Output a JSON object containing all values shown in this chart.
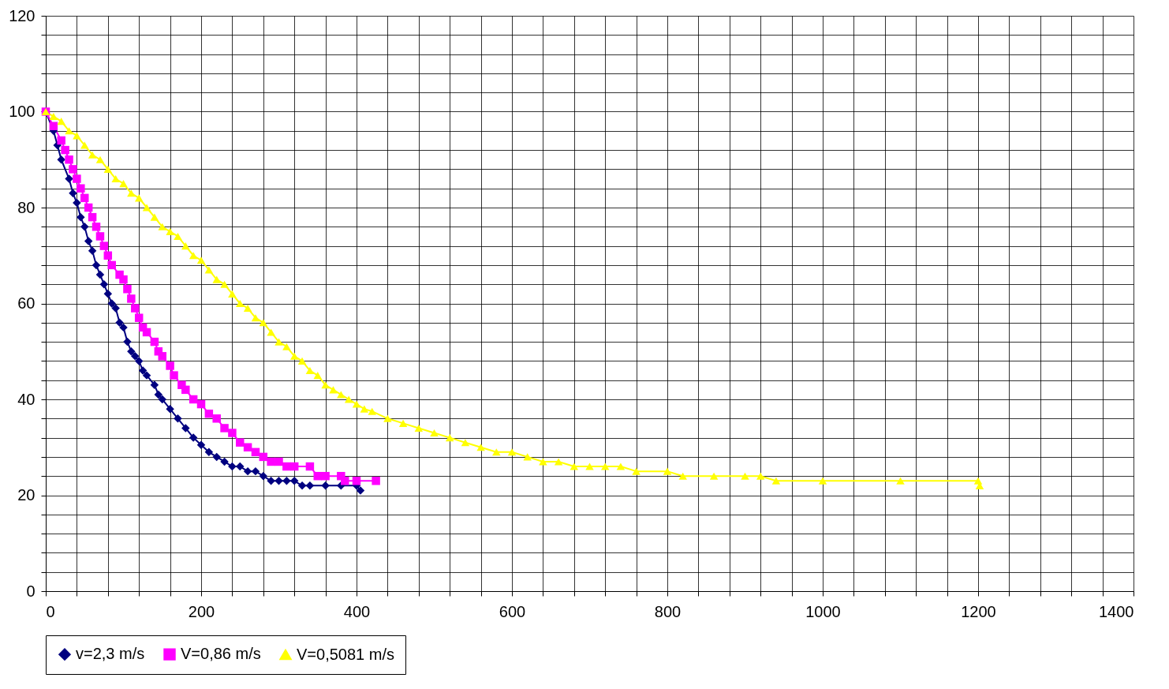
{
  "chart_data": {
    "type": "line",
    "xlim": [
      0,
      1400
    ],
    "ylim": [
      0,
      120
    ],
    "xticks": [
      0,
      {
        "value": 40,
        "label": null
      },
      {
        "value": 80,
        "label": null
      },
      {
        "value": 120,
        "label": null
      },
      {
        "value": 160,
        "label": null
      },
      200,
      {
        "value": 240,
        "label": null
      },
      {
        "value": 280,
        "label": null
      },
      {
        "value": 320,
        "label": null
      },
      {
        "value": 360,
        "label": null
      },
      400,
      {
        "value": 440,
        "label": null
      },
      {
        "value": 480,
        "label": null
      },
      {
        "value": 520,
        "label": null
      },
      {
        "value": 560,
        "label": null
      },
      600,
      {
        "value": 640,
        "label": null
      },
      {
        "value": 680,
        "label": null
      },
      {
        "value": 720,
        "label": null
      },
      {
        "value": 760,
        "label": null
      },
      800,
      {
        "value": 840,
        "label": null
      },
      {
        "value": 880,
        "label": null
      },
      {
        "value": 920,
        "label": null
      },
      {
        "value": 960,
        "label": null
      },
      1000,
      {
        "value": 1040,
        "label": null
      },
      {
        "value": 1080,
        "label": null
      },
      {
        "value": 1120,
        "label": null
      },
      {
        "value": 1160,
        "label": null
      },
      1200,
      {
        "value": 1240,
        "label": null
      },
      {
        "value": 1280,
        "label": null
      },
      {
        "value": 1320,
        "label": null
      },
      {
        "value": 1360,
        "label": null
      },
      1400
    ],
    "yticks": [
      0,
      {
        "value": 4,
        "label": null
      },
      {
        "value": 8,
        "label": null
      },
      {
        "value": 12,
        "label": null
      },
      {
        "value": 16,
        "label": null
      },
      20,
      {
        "value": 24,
        "label": null
      },
      {
        "value": 28,
        "label": null
      },
      {
        "value": 32,
        "label": null
      },
      {
        "value": 36,
        "label": null
      },
      40,
      {
        "value": 44,
        "label": null
      },
      {
        "value": 48,
        "label": null
      },
      {
        "value": 52,
        "label": null
      },
      {
        "value": 56,
        "label": null
      },
      60,
      {
        "value": 64,
        "label": null
      },
      {
        "value": 68,
        "label": null
      },
      {
        "value": 72,
        "label": null
      },
      {
        "value": 76,
        "label": null
      },
      80,
      {
        "value": 84,
        "label": null
      },
      {
        "value": 88,
        "label": null
      },
      {
        "value": 92,
        "label": null
      },
      {
        "value": 96,
        "label": null
      },
      100,
      {
        "value": 104,
        "label": null
      },
      {
        "value": 108,
        "label": null
      },
      {
        "value": 112,
        "label": null
      },
      {
        "value": 116,
        "label": null
      },
      120
    ],
    "grid": true,
    "legend": "bottom",
    "series": [
      {
        "name": "v=2,3 m/s",
        "color": "#000080",
        "marker": "diamond",
        "x": [
          0,
          10,
          15,
          20,
          30,
          35,
          40,
          45,
          50,
          55,
          60,
          65,
          70,
          75,
          80,
          85,
          90,
          95,
          100,
          105,
          110,
          115,
          120,
          125,
          130,
          140,
          145,
          150,
          160,
          170,
          180,
          190,
          200,
          210,
          220,
          230,
          240,
          250,
          260,
          270,
          280,
          290,
          300,
          310,
          320,
          330,
          340,
          360,
          380,
          400,
          405
        ],
        "values": [
          100,
          96,
          93,
          90,
          86,
          83,
          81,
          78,
          76,
          73,
          71,
          68,
          66,
          64,
          62,
          60,
          59,
          56,
          55,
          52,
          50,
          49,
          48,
          46,
          45,
          43,
          41,
          40,
          38,
          36,
          34,
          32,
          30.5,
          29,
          28,
          27,
          26,
          26,
          25,
          25,
          24,
          23,
          23,
          23,
          23,
          22,
          22,
          22,
          22,
          22,
          21
        ]
      },
      {
        "name": "V=0,86 m/s",
        "color": "#ff00ff",
        "marker": "square",
        "x": [
          0,
          10,
          20,
          25,
          30,
          35,
          40,
          45,
          50,
          55,
          60,
          65,
          70,
          75,
          80,
          85,
          95,
          100,
          105,
          110,
          115,
          120,
          125,
          130,
          140,
          145,
          150,
          160,
          165,
          175,
          180,
          190,
          200,
          210,
          220,
          230,
          240,
          250,
          260,
          270,
          280,
          290,
          300,
          310,
          320,
          340,
          350,
          360,
          380,
          385,
          400,
          425
        ],
        "values": [
          100,
          97,
          94,
          92,
          90,
          88,
          86,
          84,
          82,
          80,
          78,
          76,
          74,
          72,
          70,
          68,
          66,
          65,
          63,
          61,
          59,
          57,
          55,
          54,
          52,
          50,
          49,
          47,
          45,
          43,
          42,
          40,
          39,
          37,
          36,
          34,
          33,
          31,
          30,
          29,
          28,
          27,
          27,
          26,
          26,
          26,
          24,
          24,
          24,
          23,
          23,
          23
        ]
      },
      {
        "name": "V=0,5081 m/s",
        "color": "#ffff00",
        "marker": "triangle",
        "x": [
          0,
          10,
          20,
          30,
          40,
          50,
          60,
          70,
          80,
          90,
          100,
          110,
          120,
          130,
          140,
          150,
          160,
          170,
          180,
          190,
          200,
          210,
          220,
          230,
          240,
          250,
          260,
          270,
          280,
          290,
          300,
          310,
          320,
          330,
          340,
          350,
          360,
          370,
          380,
          390,
          400,
          410,
          420,
          440,
          460,
          480,
          500,
          520,
          540,
          560,
          580,
          600,
          620,
          640,
          660,
          680,
          700,
          720,
          740,
          760,
          800,
          820,
          860,
          900,
          920,
          940,
          1000,
          1100,
          1200,
          1202
        ],
        "values": [
          100,
          99,
          98,
          96,
          95,
          93,
          91,
          90,
          88,
          86,
          85,
          83,
          82,
          80,
          78,
          76,
          75,
          74,
          72,
          70,
          69,
          67,
          65,
          64,
          62,
          60,
          59,
          57,
          56,
          54,
          52,
          51,
          49,
          48,
          46,
          45,
          43,
          42,
          41,
          40,
          39,
          38,
          37.5,
          36,
          35,
          34,
          33,
          32,
          31,
          30,
          29,
          29,
          28,
          27,
          27,
          26,
          26,
          26,
          26,
          25,
          25,
          24,
          24,
          24,
          24,
          23,
          23,
          23,
          23,
          22
        ]
      }
    ]
  }
}
